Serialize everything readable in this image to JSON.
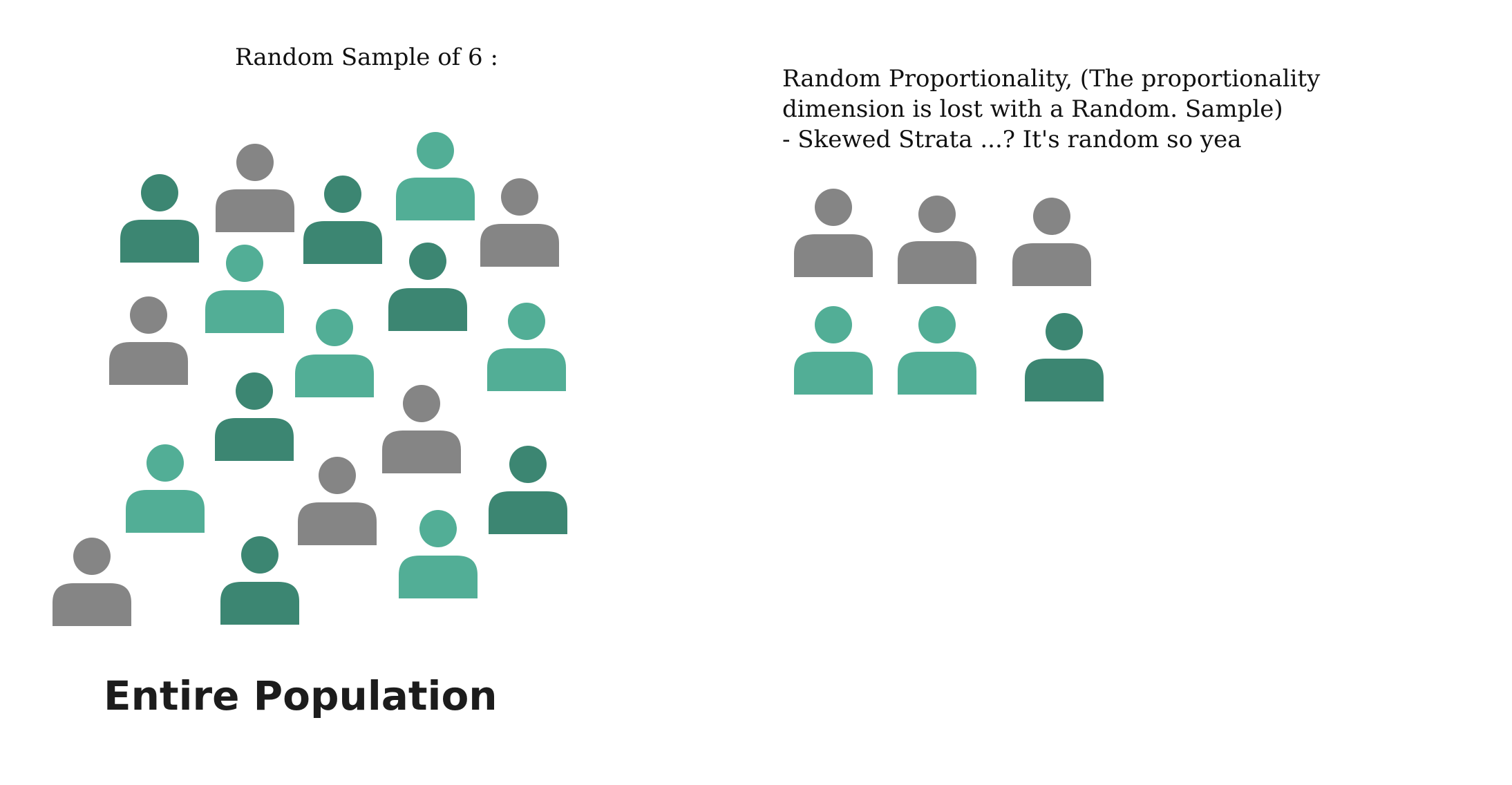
{
  "sample_heading": "Random Sample of 6 :",
  "note": {
    "lines": [
      "Random Proportionality, (The proportionality",
      "dimension is lost with a Random. Sample)",
      "- Skewed Strata ...? It's random so yea"
    ]
  },
  "population_label": "Entire Population",
  "colors": {
    "gray": "#858585",
    "dark_teal": "#3c8672",
    "light_teal": "#52ae96"
  },
  "population_people": [
    {
      "group": "gray"
    },
    {
      "group": "dark_teal"
    },
    {
      "group": "dark_teal"
    },
    {
      "group": "light_teal"
    },
    {
      "group": "gray"
    },
    {
      "group": "light_teal"
    },
    {
      "group": "dark_teal"
    },
    {
      "group": "gray"
    },
    {
      "group": "light_teal"
    },
    {
      "group": "light_teal"
    },
    {
      "group": "dark_teal"
    },
    {
      "group": "gray"
    },
    {
      "group": "light_teal"
    },
    {
      "group": "gray"
    },
    {
      "group": "dark_teal"
    },
    {
      "group": "gray"
    },
    {
      "group": "dark_teal"
    },
    {
      "group": "light_teal"
    }
  ],
  "sample_people": [
    {
      "group": "gray"
    },
    {
      "group": "gray"
    },
    {
      "group": "gray"
    },
    {
      "group": "light_teal"
    },
    {
      "group": "light_teal"
    },
    {
      "group": "dark_teal"
    }
  ]
}
